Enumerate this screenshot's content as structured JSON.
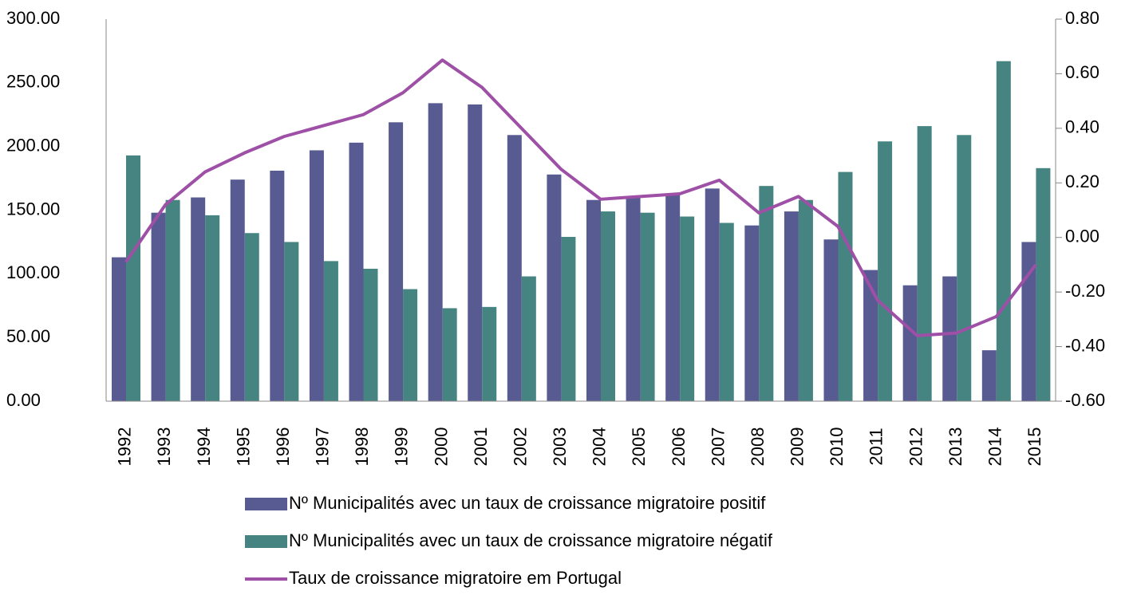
{
  "chart_data": {
    "type": "bar",
    "categories": [
      "1992",
      "1993",
      "1994",
      "1995",
      "1996",
      "1997",
      "1998",
      "1999",
      "2000",
      "2001",
      "2002",
      "2003",
      "2004",
      "2005",
      "2006",
      "2007",
      "2008",
      "2009",
      "2010",
      "2011",
      "2012",
      "2013",
      "2014",
      "2015"
    ],
    "series": [
      {
        "name": "Nº Municipalités avec un taux de croissance migratoire positif",
        "color": "#585a92",
        "values": [
          113,
          148,
          160,
          174,
          181,
          197,
          203,
          219,
          234,
          233,
          209,
          178,
          158,
          160,
          163,
          167,
          138,
          149,
          127,
          103,
          91,
          98,
          40,
          125
        ]
      },
      {
        "name": "Nº Municipalités avec un taux de croissance migratoire négatif",
        "color": "#458480",
        "values": [
          193,
          158,
          146,
          132,
          125,
          110,
          104,
          88,
          73,
          74,
          98,
          129,
          149,
          148,
          145,
          140,
          169,
          158,
          180,
          204,
          216,
          209,
          267,
          183
        ]
      },
      {
        "name": "Taux de croissance migratoire em Portugal",
        "color": "#9e4fa6",
        "type": "line",
        "axis": "y2",
        "values": [
          -0.09,
          0.12,
          0.24,
          0.31,
          0.37,
          0.41,
          0.45,
          0.53,
          0.65,
          0.55,
          0.4,
          0.25,
          0.14,
          0.15,
          0.16,
          0.21,
          0.09,
          0.15,
          0.04,
          -0.23,
          -0.36,
          -0.35,
          -0.29,
          -0.1
        ]
      }
    ],
    "ylim": [
      0,
      300
    ],
    "yticks": [
      {
        "value": 0,
        "label": "0.00"
      },
      {
        "value": 50,
        "label": "50.00"
      },
      {
        "value": 100,
        "label": "100.00"
      },
      {
        "value": 150,
        "label": "150.00"
      },
      {
        "value": 200,
        "label": "200.00"
      },
      {
        "value": 250,
        "label": "250.00"
      },
      {
        "value": 300,
        "label": "300.00"
      }
    ],
    "y2lim": [
      -0.6,
      0.8
    ],
    "y2ticks": [
      {
        "value": -0.6,
        "label": "-0.60"
      },
      {
        "value": -0.4,
        "label": "-0.40"
      },
      {
        "value": -0.2,
        "label": "-0.20"
      },
      {
        "value": 0,
        "label": "0.00"
      },
      {
        "value": 0.2,
        "label": "0.20"
      },
      {
        "value": 0.4,
        "label": "0.40"
      },
      {
        "value": 0.6,
        "label": "0.60"
      },
      {
        "value": 0.8,
        "label": "0.80"
      }
    ],
    "grid": false,
    "legend": "bottom"
  }
}
